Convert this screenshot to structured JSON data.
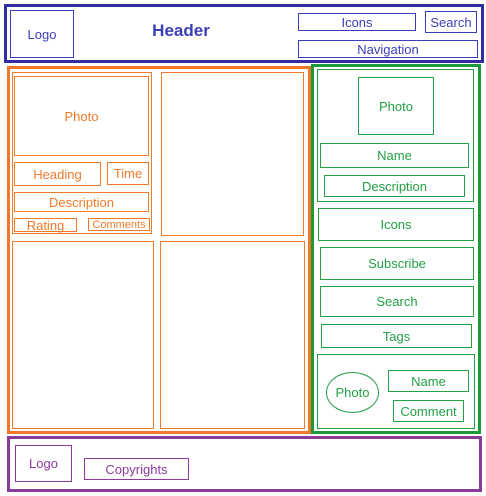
{
  "header": {
    "logo": "Logo",
    "title": "Header",
    "icons": "Icons",
    "search": "Search",
    "navigation": "Navigation"
  },
  "main": {
    "card": {
      "photo": "Photo",
      "heading": "Heading",
      "time": "Time",
      "description": "Description",
      "rating": "Rating",
      "comments": "Comments"
    }
  },
  "sidebar": {
    "profile_photo": "Photo",
    "name": "Name",
    "description": "Description",
    "icons": "Icons",
    "subscribe": "Subscribe",
    "search": "Search",
    "tags": "Tags",
    "comment_photo": "Photo",
    "comment_name": "Name",
    "comment": "Comment"
  },
  "footer": {
    "logo": "Logo",
    "copyrights": "Copyrights"
  },
  "colors": {
    "header": "#3a3fb8",
    "content": "#ef7a2a",
    "sidebar": "#24a046",
    "footer": "#8e3aa0"
  }
}
